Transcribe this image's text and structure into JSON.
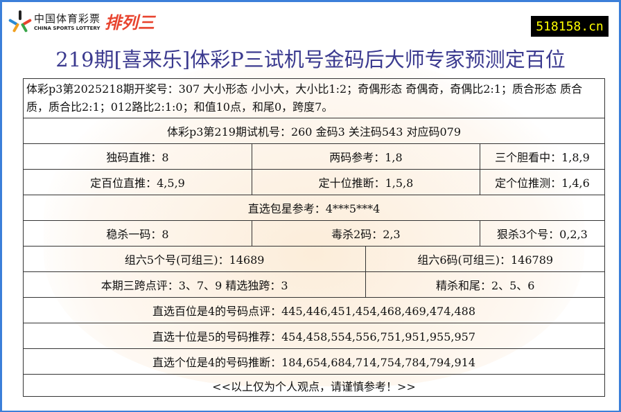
{
  "logo": {
    "cn": "中国体育彩票",
    "en": "CHINA SPORTS LOTTERY",
    "product": "排列三"
  },
  "site": "518158.cn",
  "title": "219期[喜来乐]体彩P三试机号金码后大师专家预测定百位",
  "rows": {
    "draw": "体彩p3第2025218期开奖号：307 大小形态 小小大，大小比1:2；奇偶形态 奇偶奇，奇偶比2:1；质合形态 质合质，质合比2:1；012路比2:1:0；和值10点，和尾0，跨度7。",
    "trial": "体彩p3第219期试机号：260  金码3 关注码543 对应码079",
    "r3": [
      "独码直推：8",
      "两码参考：1,8",
      "三个胆看中：1,8,9"
    ],
    "r4": [
      "定百位直推：4,5,9",
      "定十位推断：1,5,8",
      "定个位推测：1,4,6"
    ],
    "star": "直选包星参考：4***5***4",
    "r6": [
      "稳杀一码：8",
      "毒杀2码：2,3",
      "狠杀3个号：0,2,3"
    ],
    "r7": [
      "组六5个号(可组三)：14689",
      "组六6码(可组三)：146789"
    ],
    "r8": [
      "本期三跨点评：3、7、9 精选独跨：3",
      "精杀和尾：2、5、6"
    ],
    "hundreds": "直选百位是4的号码点评：445,446,451,454,468,469,474,488",
    "tens": "直选十位是5的号码推荐：454,458,554,556,751,951,955,957",
    "units": "直选个位是4的号码推断：184,654,684,714,754,784,794,914",
    "note": "<<以上仅为个人观点，请谨慎参考！>>"
  }
}
